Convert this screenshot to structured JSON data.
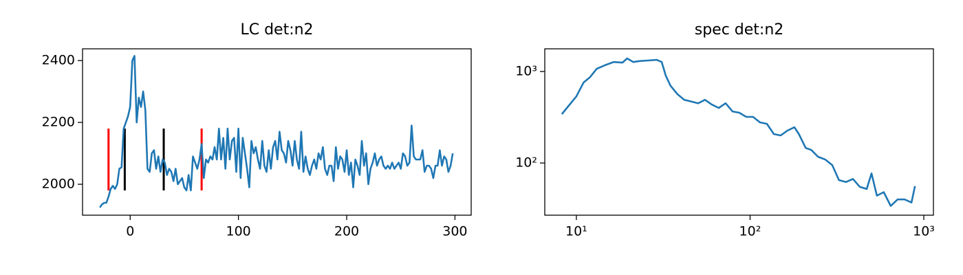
{
  "chart_data": [
    {
      "type": "line",
      "title": "LC det:n2",
      "color": "#1f77b4",
      "x": [
        -28,
        -26,
        -24,
        -22,
        -20,
        -18,
        -16,
        -14,
        -12,
        -10,
        -8,
        -6,
        -4,
        -2,
        0,
        2,
        4,
        6,
        8,
        10,
        12,
        14,
        16,
        18,
        20,
        22,
        24,
        26,
        28,
        30,
        32,
        34,
        36,
        38,
        40,
        42,
        44,
        46,
        48,
        50,
        52,
        54,
        56,
        58,
        60,
        62,
        64,
        66,
        68,
        70,
        72,
        74,
        76,
        78,
        80,
        82,
        84,
        86,
        88,
        90,
        92,
        94,
        96,
        98,
        100,
        102,
        104,
        106,
        108,
        110,
        112,
        114,
        116,
        118,
        120,
        122,
        124,
        126,
        128,
        130,
        132,
        134,
        136,
        138,
        140,
        142,
        144,
        146,
        148,
        150,
        152,
        154,
        156,
        158,
        160,
        162,
        164,
        166,
        168,
        170,
        172,
        174,
        176,
        178,
        180,
        182,
        184,
        186,
        188,
        190,
        192,
        194,
        196,
        198,
        200,
        202,
        204,
        206,
        208,
        210,
        212,
        214,
        216,
        218,
        220,
        222,
        224,
        226,
        228,
        230,
        232,
        234,
        236,
        238,
        240,
        242,
        244,
        246,
        248,
        250,
        252,
        254,
        256,
        258,
        260,
        262,
        264,
        266,
        268,
        270,
        272,
        274,
        276,
        278,
        280,
        282,
        284,
        286,
        288,
        290,
        292,
        294,
        296,
        298
      ],
      "values": [
        1925,
        1935,
        1940,
        1940,
        1960,
        1985,
        1995,
        1985,
        2000,
        2050,
        2055,
        2180,
        2200,
        2220,
        2250,
        2400,
        2415,
        2200,
        2280,
        2250,
        2300,
        2240,
        2050,
        2040,
        2100,
        2110,
        2050,
        2090,
        2040,
        2080,
        2070,
        2030,
        2050,
        2040,
        2010,
        2050,
        2000,
        2010,
        2020,
        1990,
        1980,
        2030,
        1980,
        2090,
        2070,
        2050,
        2080,
        2130,
        2020,
        2080,
        2070,
        2090,
        2080,
        2120,
        2080,
        2180,
        2080,
        2150,
        2050,
        2180,
        2080,
        2140,
        2150,
        2040,
        2180,
        2020,
        2150,
        2100,
        2050,
        1990,
        2140,
        2100,
        2120,
        2080,
        2050,
        2140,
        2060,
        2040,
        2110,
        2050,
        2120,
        2140,
        2080,
        2170,
        2110,
        2100,
        2070,
        2140,
        2110,
        2060,
        2140,
        2080,
        2050,
        2170,
        2040,
        2090,
        2050,
        2030,
        2060,
        2080,
        2050,
        2100,
        2080,
        2120,
        2050,
        2030,
        2060,
        2060,
        2010,
        2120,
        2050,
        2090,
        2080,
        2040,
        2110,
        2030,
        2070,
        1990,
        2080,
        2060,
        2030,
        2140,
        2060,
        2100,
        2000,
        2050,
        2070,
        2100,
        2060,
        2080,
        2090,
        2060,
        2050,
        2060,
        2050,
        2070,
        2050,
        2060,
        2070,
        2050,
        2100,
        2090,
        2060,
        2070,
        2190,
        2090,
        2080,
        2080,
        2080,
        2110,
        2040,
        2060,
        2060,
        2050,
        2020,
        2060,
        2060,
        2110,
        2060,
        2090,
        2080,
        2040,
        2060,
        2100
      ],
      "xlim": [
        -44,
        315
      ],
      "xticks": [
        0,
        100,
        200,
        300
      ],
      "ylim": [
        1900,
        2438
      ],
      "yticks": [
        2000,
        2200,
        2400
      ],
      "vlines": [
        {
          "x": -20,
          "color": "#ff0000"
        },
        {
          "x": -5,
          "color": "#000000"
        },
        {
          "x": 31,
          "color": "#000000"
        },
        {
          "x": 66,
          "color": "#ff0000"
        }
      ],
      "vline_ylim": [
        1980,
        2180
      ]
    },
    {
      "type": "line",
      "title": "spec det:n2",
      "color": "#1f77b4",
      "xlog": true,
      "ylog": true,
      "x": [
        8.25,
        10,
        11,
        12,
        13.1,
        14.6,
        16.4,
        18.4,
        19.6,
        21.3,
        23.1,
        25.8,
        29,
        31,
        32.7,
        34.8,
        38.2,
        41.8,
        45.8,
        50.2,
        55,
        60.2,
        66,
        72.3,
        79.2,
        86.8,
        95,
        104,
        114,
        125,
        137,
        150,
        164,
        180,
        191,
        209,
        225,
        246,
        271,
        297,
        325,
        357,
        391,
        428,
        469,
        500,
        537,
        588,
        645,
        707,
        775,
        849,
        890
      ],
      "values": [
        342,
        535,
        758,
        870,
        1070,
        1170,
        1270,
        1250,
        1390,
        1270,
        1300,
        1320,
        1340,
        1270,
        900,
        700,
        565,
        490,
        470,
        450,
        490,
        435,
        400,
        450,
        366,
        354,
        319,
        319,
        278,
        268,
        207,
        200,
        226,
        246,
        207,
        146,
        139,
        117,
        109,
        95,
        65,
        62,
        67,
        55,
        52,
        77,
        44,
        48,
        34,
        40,
        40,
        37,
        56
      ],
      "xlim": [
        6.58,
        1136
      ],
      "xticks": [
        {
          "value": 10,
          "label": "10¹"
        },
        {
          "value": 100,
          "label": "10²"
        },
        {
          "value": 1000,
          "label": "10³"
        }
      ],
      "ylim": [
        26.9,
        1770
      ],
      "yticks": [
        {
          "value": 100,
          "label": "10²"
        },
        {
          "value": 1000,
          "label": "10³"
        }
      ]
    }
  ]
}
